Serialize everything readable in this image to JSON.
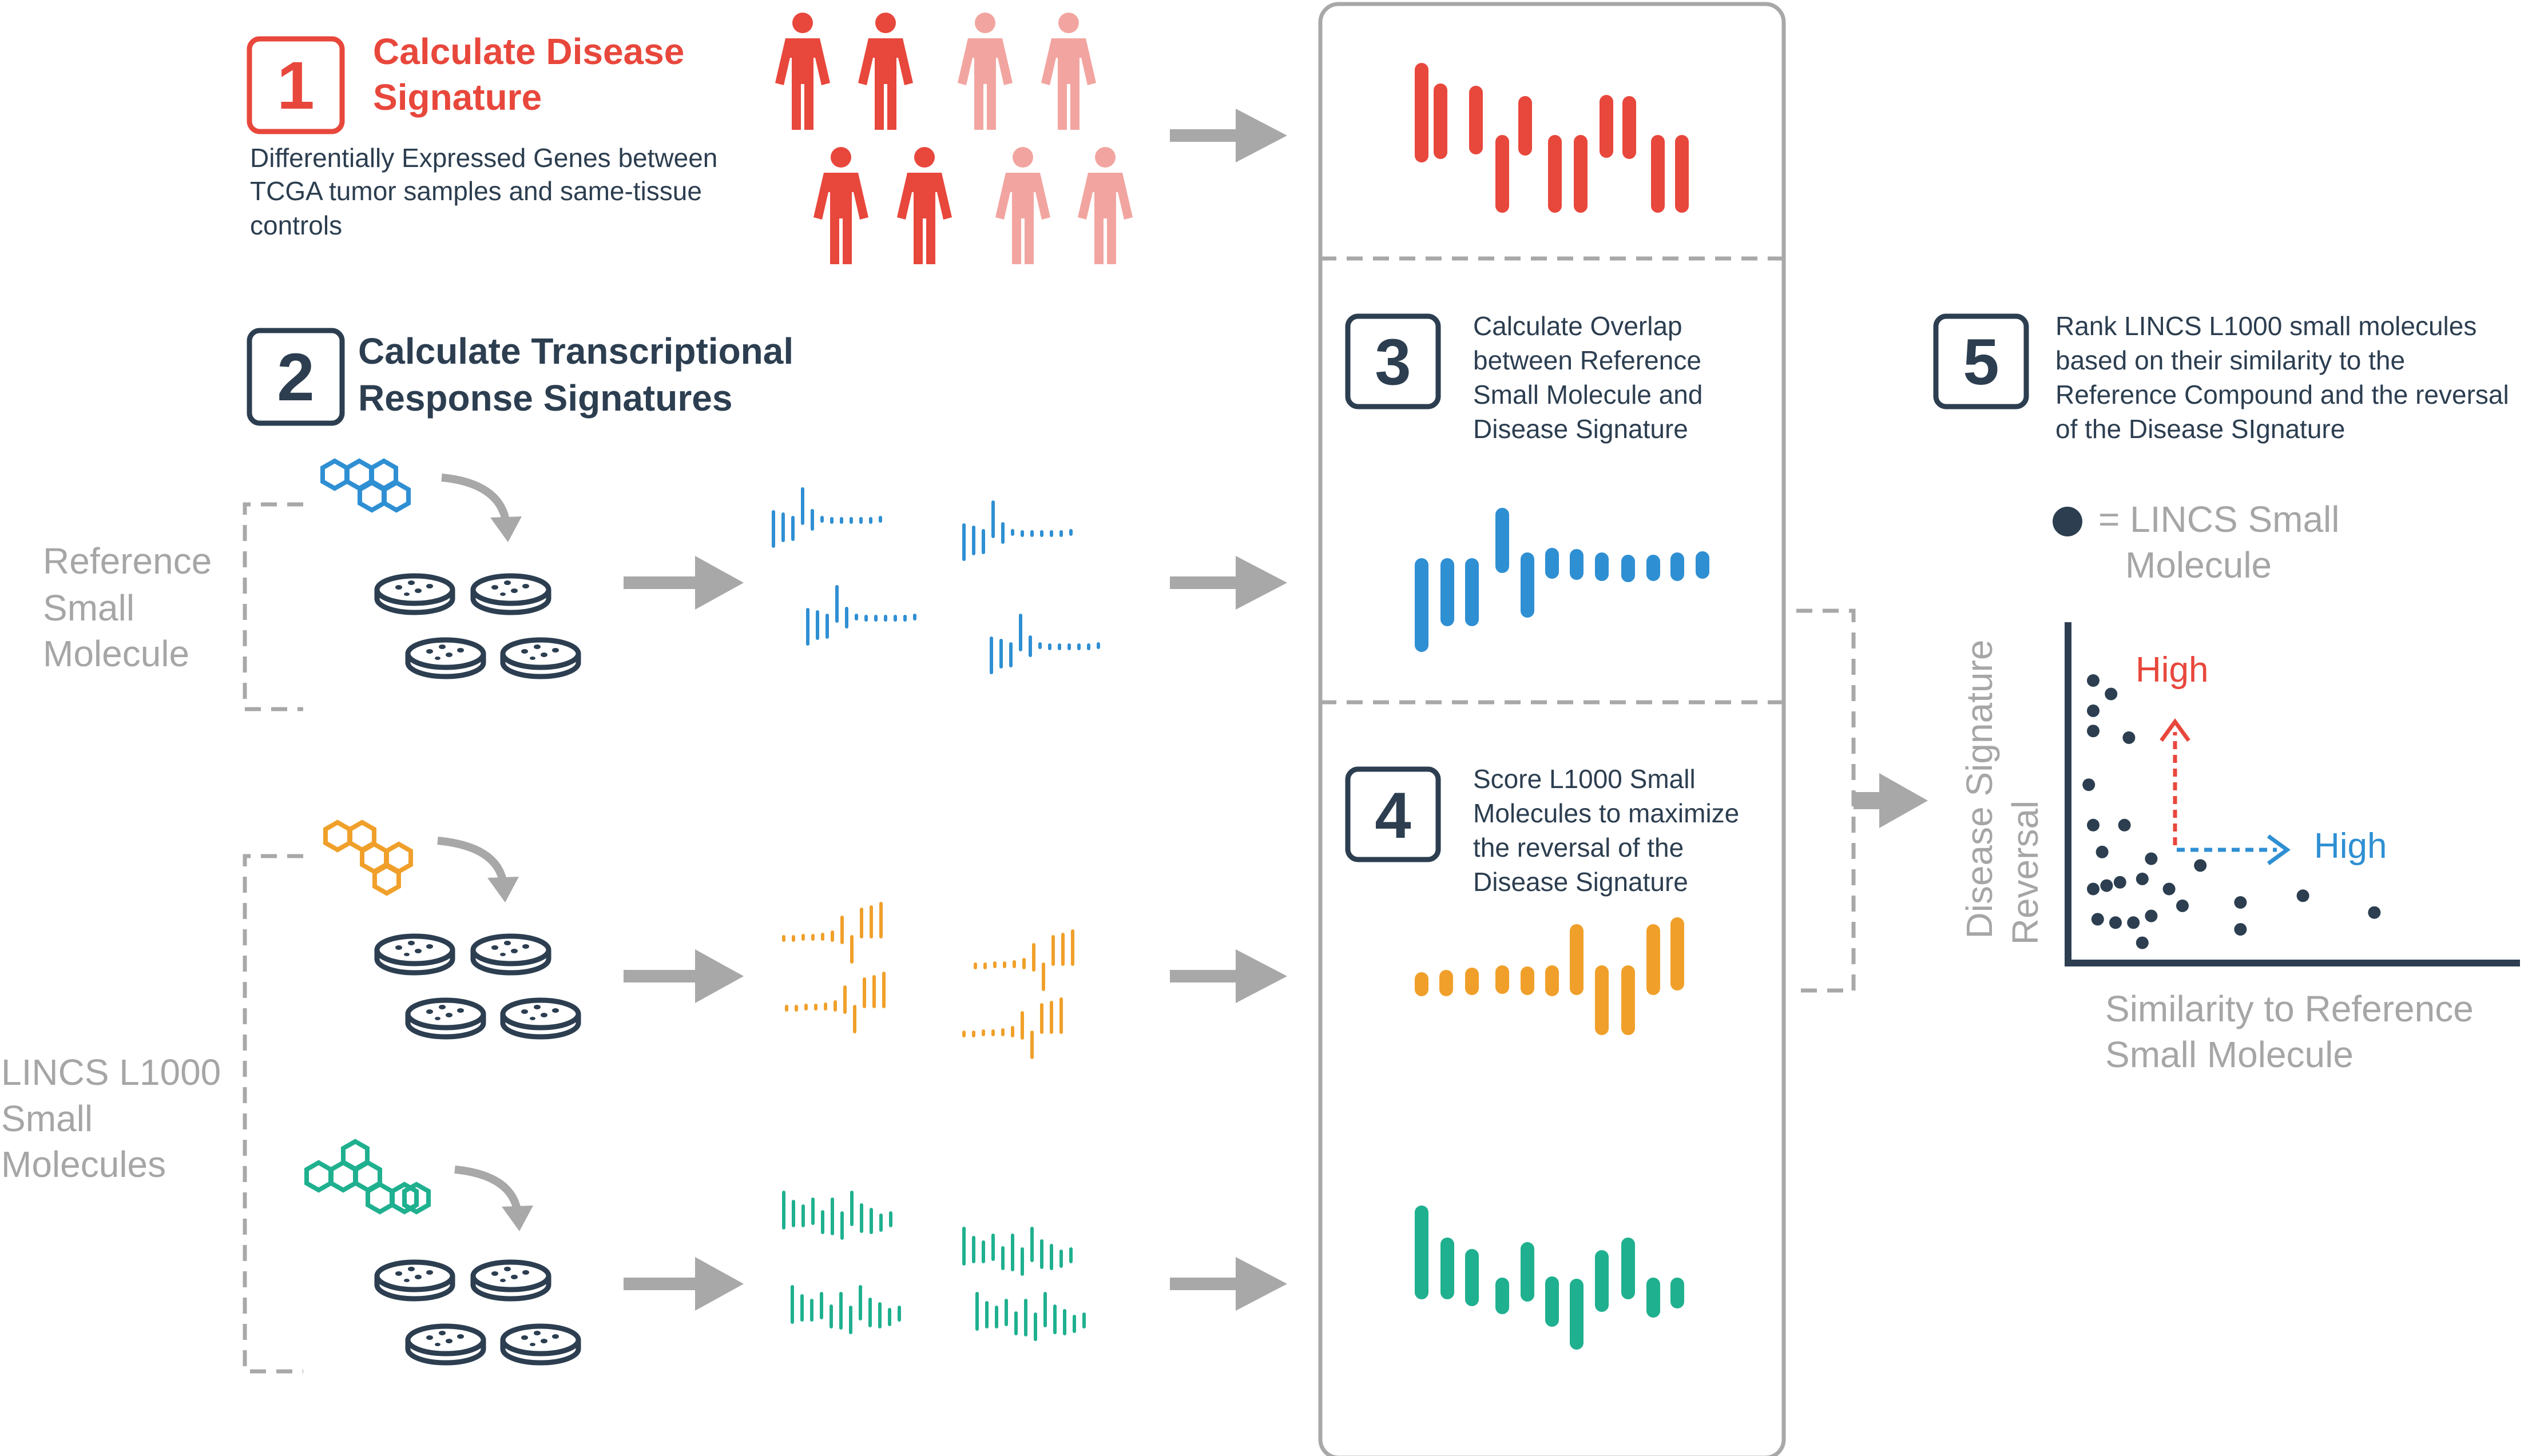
{
  "colors": {
    "red": "#e8473c",
    "pink": "#f2a5a0",
    "navy": "#2c3e50",
    "blue": "#2f8fd3",
    "orange": "#f0a02a",
    "teal": "#1fb08f",
    "gray_text": "#a6a6a6",
    "gray_line": "#a8a8a8"
  },
  "step1": {
    "number": "1",
    "title_line1": "Calculate Disease",
    "title_line2": "Signature",
    "desc_line1": "Differentially Expressed Genes between",
    "desc_line2": "TCGA tumor samples and same-tissue",
    "desc_line3": "controls"
  },
  "step2": {
    "number": "2",
    "title_line1": "Calculate Transcriptional",
    "title_line2": "Response Signatures"
  },
  "step3": {
    "number": "3",
    "lines": [
      "Calculate Overlap",
      "between Reference",
      "Small Molecule and",
      "Disease Signature"
    ]
  },
  "step4": {
    "number": "4",
    "lines": [
      "Score L1000 Small",
      "Molecules to maximize",
      "the reversal of the",
      "Disease Signature"
    ]
  },
  "step5": {
    "number": "5",
    "lines": [
      "Rank LINCS L1000 small molecules",
      "based on their similarity to the",
      "Reference Compound and the reversal",
      "of the Disease SIgnature"
    ]
  },
  "groups": {
    "reference_lines": [
      "Reference",
      "Small",
      "Molecule"
    ],
    "lincs_lines": [
      "LINCS L1000",
      "Small",
      "Molecules"
    ]
  },
  "people": {
    "total": 8,
    "tumor": 4,
    "control": 4,
    "icon": "person-icon"
  },
  "icons": {
    "molecule": "hexagon-molecule-icon",
    "dish": "petri-dish-icon",
    "arrow": "arrow-right-icon",
    "curved_arrow": "curved-arrow-icon"
  },
  "scatter": {
    "legend_line1": "= LINCS Small",
    "legend_line2": "Molecule",
    "y_label_line1": "Disease Signature",
    "y_label_line2": "Reversal",
    "x_label_line1": "Similarity to Reference",
    "x_label_line2": "Small Molecule",
    "high_y": "High",
    "high_x": "High",
    "points": [
      [
        0.5,
        8.3
      ],
      [
        0.9,
        7.9
      ],
      [
        0.5,
        7.4
      ],
      [
        0.5,
        6.8
      ],
      [
        1.3,
        6.6
      ],
      [
        0.4,
        5.2
      ],
      [
        0.5,
        4.0
      ],
      [
        1.2,
        4.0
      ],
      [
        0.7,
        3.2
      ],
      [
        1.8,
        3.0
      ],
      [
        0.5,
        2.1
      ],
      [
        0.8,
        2.2
      ],
      [
        1.1,
        2.3
      ],
      [
        1.6,
        2.4
      ],
      [
        2.2,
        2.1
      ],
      [
        2.9,
        2.8
      ],
      [
        0.6,
        1.2
      ],
      [
        1.0,
        1.1
      ],
      [
        1.4,
        1.1
      ],
      [
        1.8,
        1.3
      ],
      [
        2.5,
        1.6
      ],
      [
        3.8,
        1.7
      ],
      [
        5.2,
        1.9
      ],
      [
        3.8,
        0.9
      ],
      [
        6.8,
        1.4
      ],
      [
        1.6,
        0.5
      ]
    ]
  }
}
